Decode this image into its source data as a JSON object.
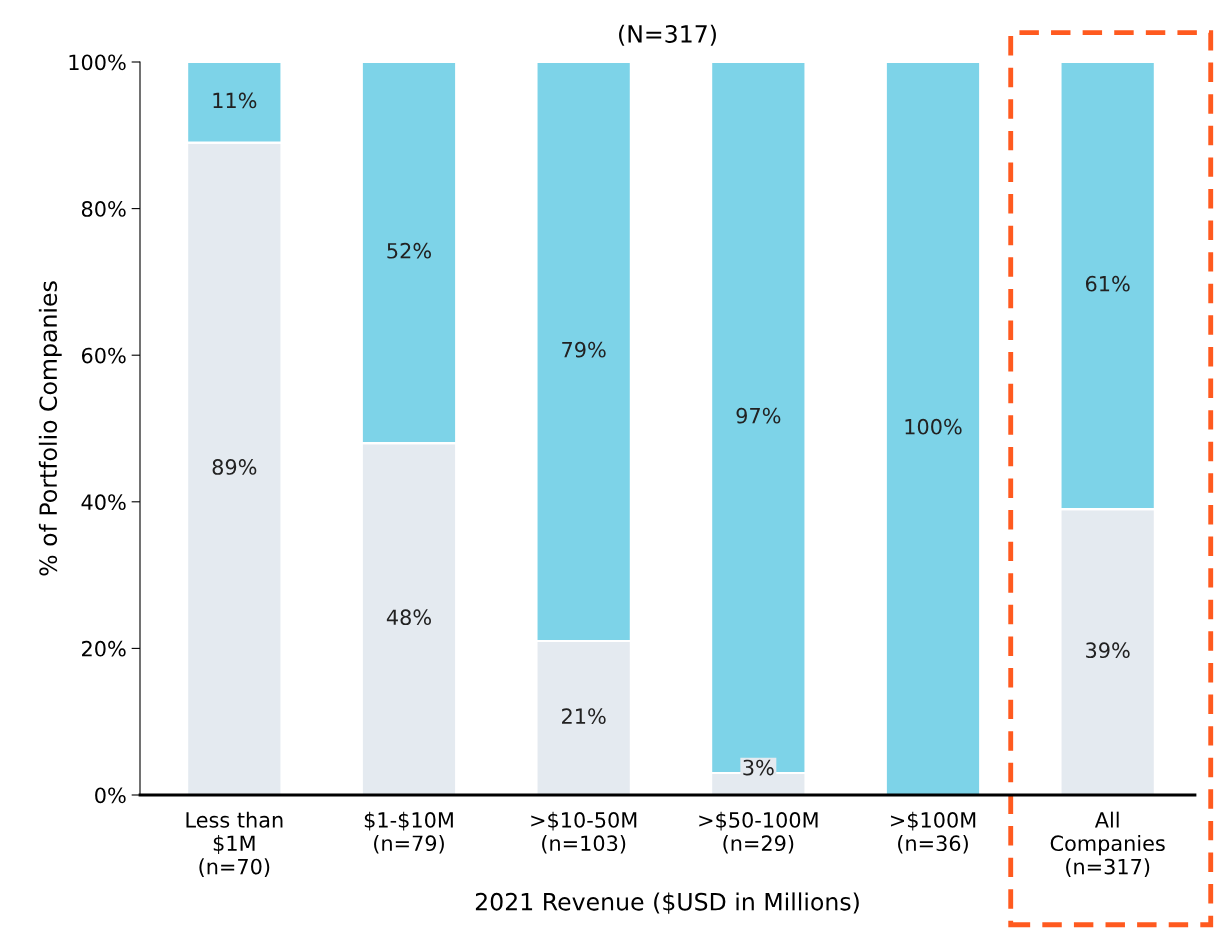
{
  "chart_data": {
    "type": "bar",
    "stacked": true,
    "title": "(N=317)",
    "xlabel": "2021 Revenue ($USD in Millions)",
    "ylabel": "% of Portfolio Companies",
    "categories": [
      "Less than\n$1M\n(n=70)",
      "$1-$10M\n(n=79)",
      ">$10-50M\n(n=103)",
      ">$50-100M\n(n=29)",
      ">$100M\n(n=36)",
      "All\nCompanies\n(n=317)"
    ],
    "series": [
      {
        "color": "#e4eaf0",
        "values": [
          89,
          48,
          21,
          3,
          0,
          39
        ],
        "value_labels": [
          "89%",
          "48%",
          "21%",
          "3%",
          null,
          "39%"
        ]
      },
      {
        "color": "#7dd3e8",
        "values": [
          11,
          52,
          79,
          97,
          100,
          61
        ],
        "value_labels": [
          "11%",
          "52%",
          "79%",
          "97%",
          "100%",
          "61%"
        ]
      }
    ],
    "ylim": [
      0,
      100
    ],
    "yticks": [
      {
        "value": 0,
        "label": "0%"
      },
      {
        "value": 20,
        "label": "20%"
      },
      {
        "value": 40,
        "label": "40%"
      },
      {
        "value": 60,
        "label": "60%"
      },
      {
        "value": 80,
        "label": "80%"
      },
      {
        "value": 100,
        "label": "100%"
      }
    ],
    "grid": false,
    "legend": false
  }
}
